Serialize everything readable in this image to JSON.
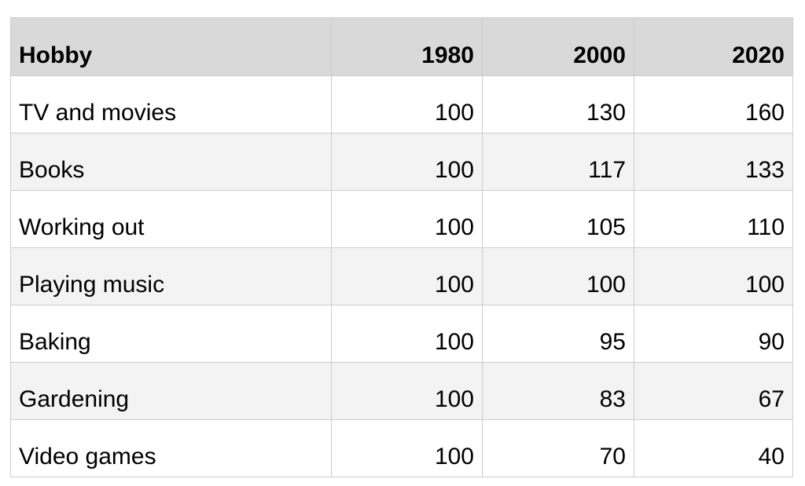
{
  "table": {
    "columns": [
      "Hobby",
      "1980",
      "2000",
      "2020"
    ],
    "rows": [
      {
        "hobby": "TV and movies",
        "values": [
          "100",
          "130",
          "160"
        ]
      },
      {
        "hobby": "Books",
        "values": [
          "100",
          "117",
          "133"
        ]
      },
      {
        "hobby": "Working out",
        "values": [
          "100",
          "105",
          "110"
        ]
      },
      {
        "hobby": "Playing music",
        "values": [
          "100",
          "100",
          "100"
        ]
      },
      {
        "hobby": "Baking",
        "values": [
          "100",
          "95",
          "90"
        ]
      },
      {
        "hobby": "Gardening",
        "values": [
          "100",
          "83",
          "67"
        ]
      },
      {
        "hobby": "Video games",
        "values": [
          "100",
          "70",
          "40"
        ]
      }
    ]
  },
  "chart_data": {
    "type": "table",
    "title": "",
    "columns": [
      "Hobby",
      "1980",
      "2000",
      "2020"
    ],
    "categories": [
      "TV and movies",
      "Books",
      "Working out",
      "Playing music",
      "Baking",
      "Gardening",
      "Video games"
    ],
    "series": [
      {
        "name": "1980",
        "values": [
          100,
          100,
          100,
          100,
          100,
          100,
          100
        ]
      },
      {
        "name": "2000",
        "values": [
          130,
          117,
          105,
          100,
          95,
          83,
          70
        ]
      },
      {
        "name": "2020",
        "values": [
          160,
          133,
          110,
          100,
          90,
          67,
          40
        ]
      }
    ]
  },
  "colors": {
    "header_bg": "#d9d9d9",
    "row_bg": "#ffffff",
    "row_alt_bg": "#f3f3f3",
    "border": "#cccccc",
    "text": "#000000"
  }
}
